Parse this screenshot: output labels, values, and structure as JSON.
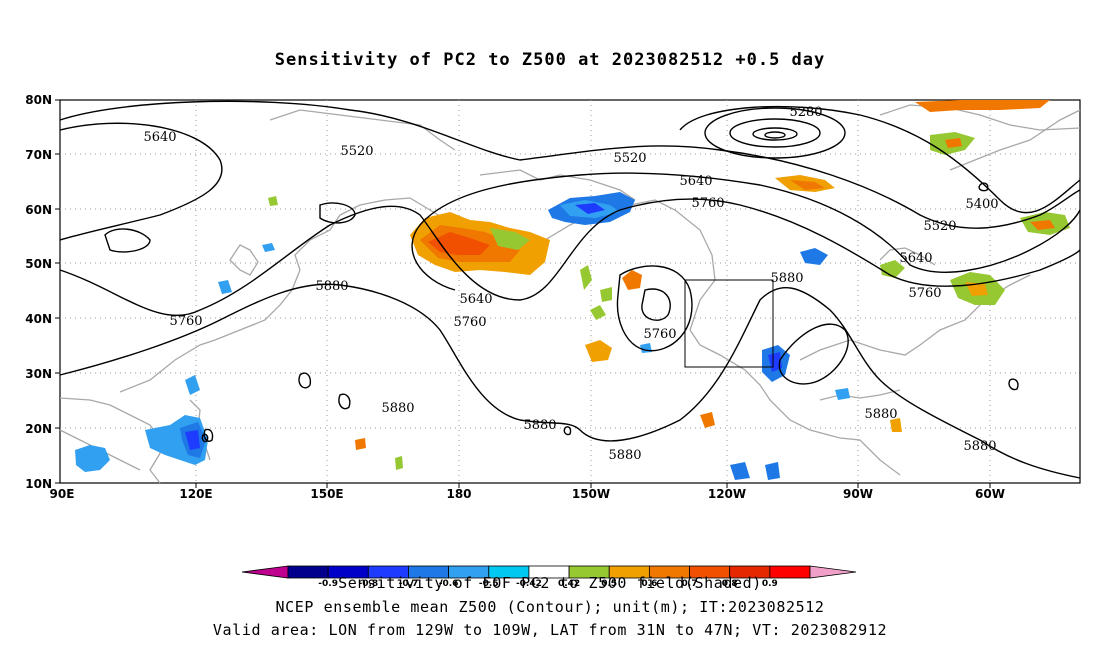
{
  "title": "Sensitivity of PC2 to Z500 at 2023082512 +0.5 day",
  "lat_labels": [
    "80N",
    "70N",
    "60N",
    "50N",
    "40N",
    "30N",
    "20N",
    "10N"
  ],
  "lon_labels": [
    "90E",
    "120E",
    "150E",
    "180",
    "150W",
    "120W",
    "90W",
    "60W"
  ],
  "contour_labels": [
    "5280",
    "5400",
    "5520",
    "5520",
    "5520",
    "5640",
    "5640",
    "5640",
    "5640",
    "5760",
    "5760",
    "5760",
    "5760",
    "5760",
    "5880",
    "5880",
    "5880",
    "5880",
    "5880",
    "5880",
    "5880"
  ],
  "colorbar": {
    "labels": [
      "-0.9",
      "-0.8",
      "-0.7",
      "-0.6",
      "-0.5",
      "-0.42",
      "0.42",
      "0.5",
      "0.6",
      "0.7",
      "0.8",
      "0.9"
    ],
    "colors": [
      "#c00090",
      "#00008c",
      "#0000c8",
      "#1e3cff",
      "#1e78e6",
      "#32a0f0",
      "#00c8f0",
      "#ffffff",
      "#96c832",
      "#f0a000",
      "#f07800",
      "#f05000",
      "#e62800",
      "#ff0000",
      "#f0a0c8"
    ]
  },
  "captions": [
    "Sensitivity of EOF PC2 to Z500 field(Shaded)",
    "NCEP ensemble mean Z500 (Contour); unit(m); IT:2023082512",
    "Valid area: LON from 129W to 109W, LAT from 31N to 47N; VT: 2023082912"
  ],
  "colors": {
    "contour": "#000000",
    "coastline": "#a0a0a0",
    "frame": "#000000"
  }
}
